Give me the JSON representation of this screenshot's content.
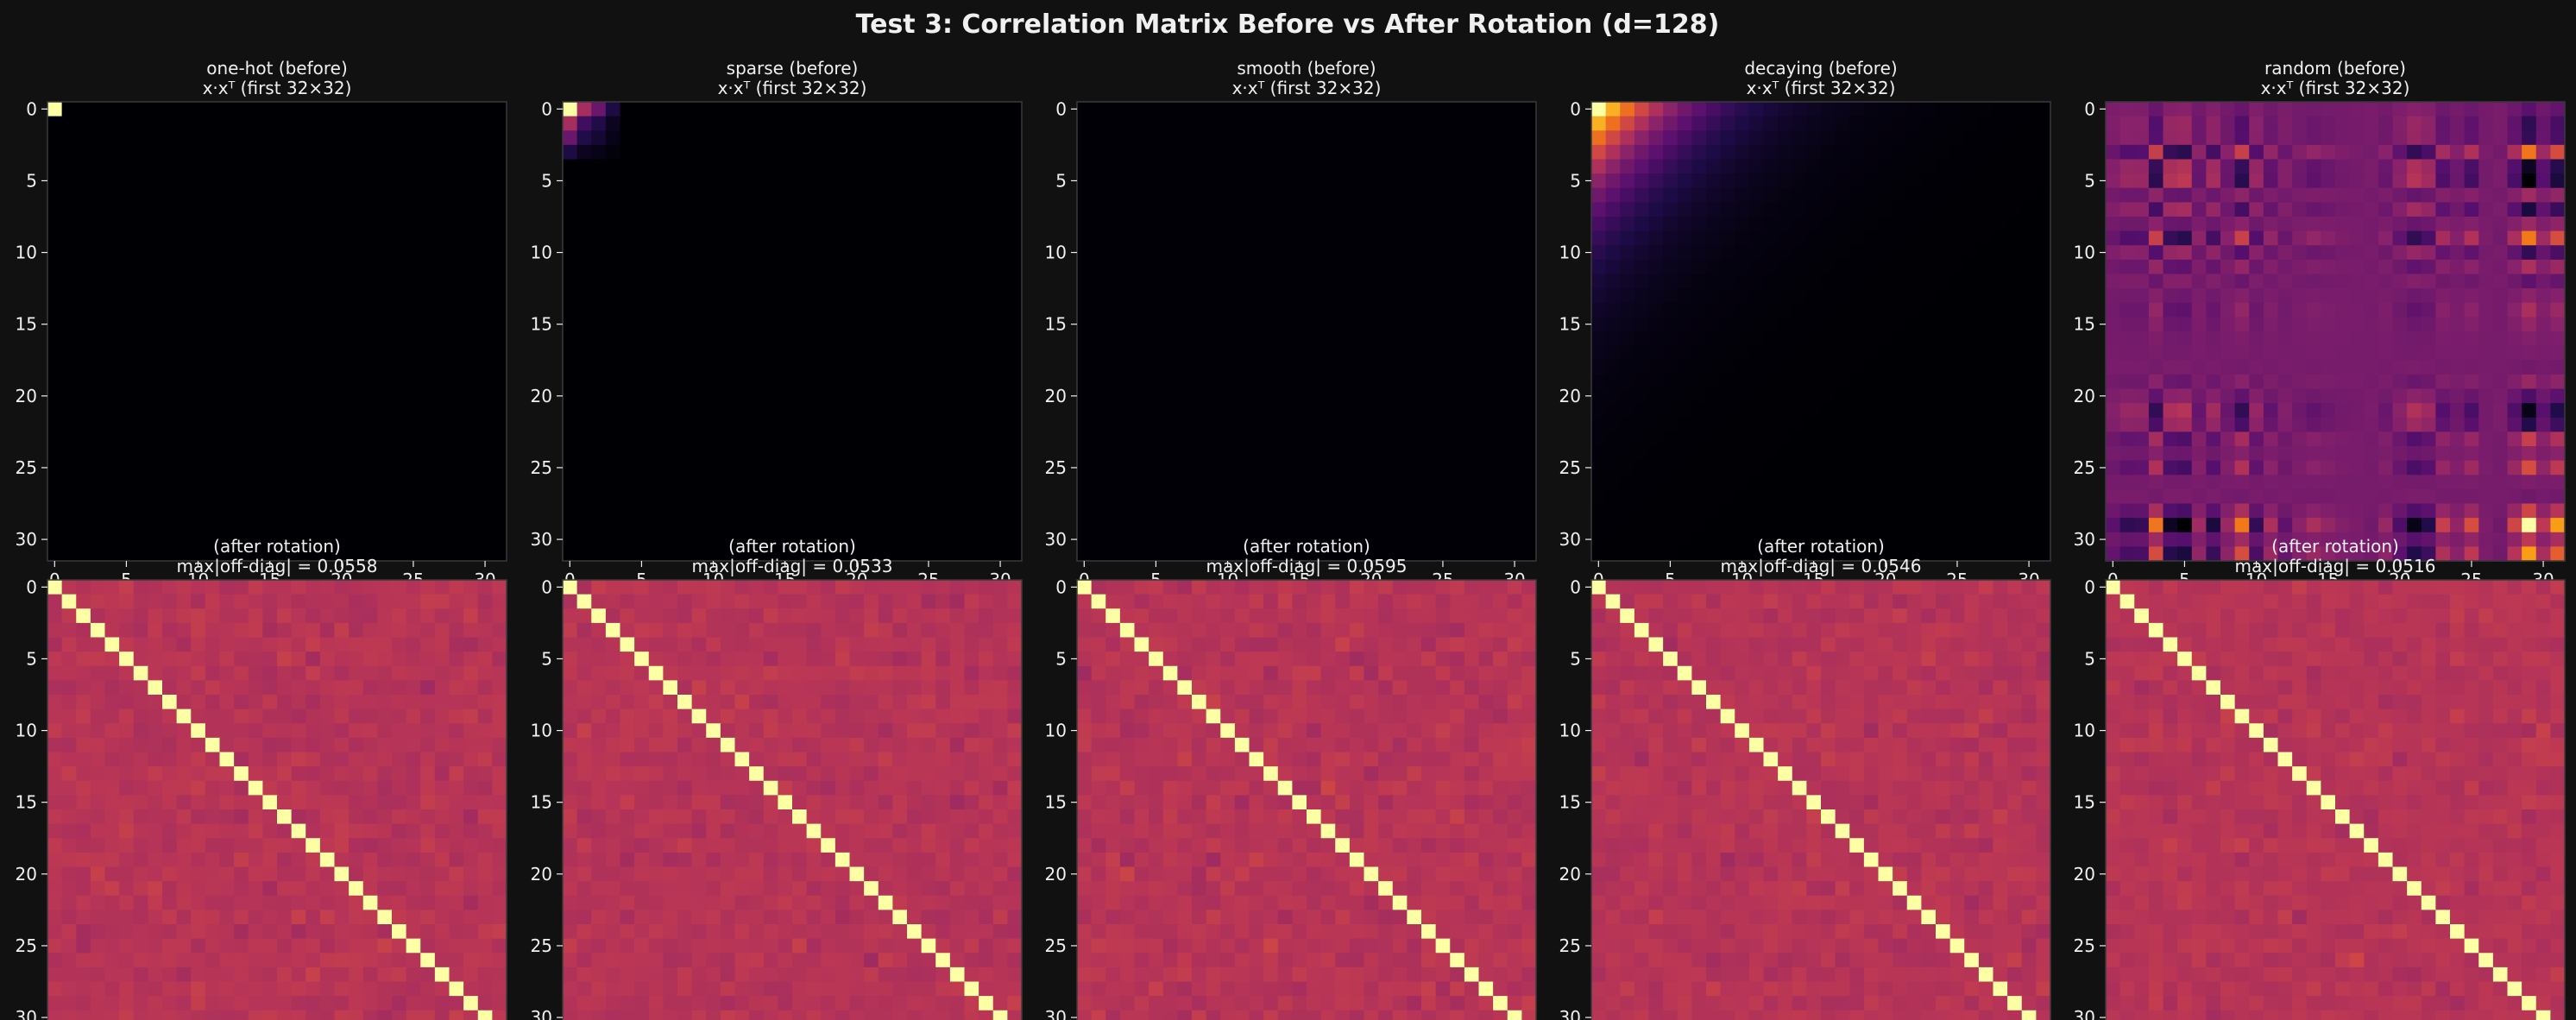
{
  "figure": {
    "suptitle": "Test 3: Correlation Matrix Before vs After Rotation (d=128)",
    "background": "#111111",
    "text_color": "#f0f0f0",
    "frame_color": "#3a3a3a",
    "colormap": "inferno"
  },
  "chart_data": [
    {
      "type": "heatmap",
      "title": "one-hot (before)",
      "subtitle": "x·xᵀ (first 32×32)",
      "size": 32,
      "pattern": "one-hot",
      "x_ticks": [
        "0",
        "5",
        "10",
        "15",
        "20",
        "25",
        "30"
      ],
      "y_ticks": [
        "0",
        "5",
        "10",
        "15",
        "20",
        "25",
        "30"
      ],
      "xlim": [
        -0.5,
        31.5
      ],
      "ylim": [
        31.5,
        -0.5
      ],
      "grid": false
    },
    {
      "type": "heatmap",
      "title": "sparse (before)",
      "subtitle": "x·xᵀ (first 32×32)",
      "size": 32,
      "pattern": "sparse",
      "x_ticks": [
        "0",
        "5",
        "10",
        "15",
        "20",
        "25",
        "30"
      ],
      "y_ticks": [
        "0",
        "5",
        "10",
        "15",
        "20",
        "25",
        "30"
      ],
      "xlim": [
        -0.5,
        31.5
      ],
      "ylim": [
        31.5,
        -0.5
      ],
      "grid": false
    },
    {
      "type": "heatmap",
      "title": "smooth (before)",
      "subtitle": "x·xᵀ (first 32×32)",
      "size": 32,
      "pattern": "smooth",
      "x_ticks": [
        "0",
        "5",
        "10",
        "15",
        "20",
        "25",
        "30"
      ],
      "y_ticks": [
        "0",
        "5",
        "10",
        "15",
        "20",
        "25",
        "30"
      ],
      "xlim": [
        -0.5,
        31.5
      ],
      "ylim": [
        31.5,
        -0.5
      ],
      "grid": false
    },
    {
      "type": "heatmap",
      "title": "decaying (before)",
      "subtitle": "x·xᵀ (first 32×32)",
      "size": 32,
      "pattern": "decaying",
      "x_ticks": [
        "0",
        "5",
        "10",
        "15",
        "20",
        "25",
        "30"
      ],
      "y_ticks": [
        "0",
        "5",
        "10",
        "15",
        "20",
        "25",
        "30"
      ],
      "xlim": [
        -0.5,
        31.5
      ],
      "ylim": [
        31.5,
        -0.5
      ],
      "grid": false
    },
    {
      "type": "heatmap",
      "title": "random (before)",
      "subtitle": "x·xᵀ (first 32×32)",
      "size": 32,
      "pattern": "random",
      "x_ticks": [
        "0",
        "5",
        "10",
        "15",
        "20",
        "25",
        "30"
      ],
      "y_ticks": [
        "0",
        "5",
        "10",
        "15",
        "20",
        "25",
        "30"
      ],
      "xlim": [
        -0.5,
        31.5
      ],
      "ylim": [
        31.5,
        -0.5
      ],
      "grid": false
    },
    {
      "type": "heatmap",
      "title": "(after rotation)",
      "subtitle": "max|off-diag| = 0.0558",
      "max_off_diag": 0.0558,
      "size": 32,
      "pattern": "identity-noise",
      "x_ticks": [
        "0",
        "5",
        "10",
        "15",
        "20",
        "25",
        "30"
      ],
      "y_ticks": [
        "0",
        "5",
        "10",
        "15",
        "20",
        "25",
        "30"
      ],
      "xlim": [
        -0.5,
        31.5
      ],
      "ylim": [
        31.5,
        -0.5
      ],
      "grid": false
    },
    {
      "type": "heatmap",
      "title": "(after rotation)",
      "subtitle": "max|off-diag| = 0.0533",
      "max_off_diag": 0.0533,
      "size": 32,
      "pattern": "identity-noise",
      "x_ticks": [
        "0",
        "5",
        "10",
        "15",
        "20",
        "25",
        "30"
      ],
      "y_ticks": [
        "0",
        "5",
        "10",
        "15",
        "20",
        "25",
        "30"
      ],
      "xlim": [
        -0.5,
        31.5
      ],
      "ylim": [
        31.5,
        -0.5
      ],
      "grid": false
    },
    {
      "type": "heatmap",
      "title": "(after rotation)",
      "subtitle": "max|off-diag| = 0.0595",
      "max_off_diag": 0.0595,
      "size": 32,
      "pattern": "identity-noise",
      "x_ticks": [
        "0",
        "5",
        "10",
        "15",
        "20",
        "25",
        "30"
      ],
      "y_ticks": [
        "0",
        "5",
        "10",
        "15",
        "20",
        "25",
        "30"
      ],
      "xlim": [
        -0.5,
        31.5
      ],
      "ylim": [
        31.5,
        -0.5
      ],
      "grid": false
    },
    {
      "type": "heatmap",
      "title": "(after rotation)",
      "subtitle": "max|off-diag| = 0.0546",
      "max_off_diag": 0.0546,
      "size": 32,
      "pattern": "identity-noise",
      "x_ticks": [
        "0",
        "5",
        "10",
        "15",
        "20",
        "25",
        "30"
      ],
      "y_ticks": [
        "0",
        "5",
        "10",
        "15",
        "20",
        "25",
        "30"
      ],
      "xlim": [
        -0.5,
        31.5
      ],
      "ylim": [
        31.5,
        -0.5
      ],
      "grid": false
    },
    {
      "type": "heatmap",
      "title": "(after rotation)",
      "subtitle": "max|off-diag| = 0.0516",
      "max_off_diag": 0.0516,
      "size": 32,
      "pattern": "identity-noise",
      "x_ticks": [
        "0",
        "5",
        "10",
        "15",
        "20",
        "25",
        "30"
      ],
      "y_ticks": [
        "0",
        "5",
        "10",
        "15",
        "20",
        "25",
        "30"
      ],
      "xlim": [
        -0.5,
        31.5
      ],
      "ylim": [
        31.5,
        -0.5
      ],
      "grid": false
    }
  ]
}
